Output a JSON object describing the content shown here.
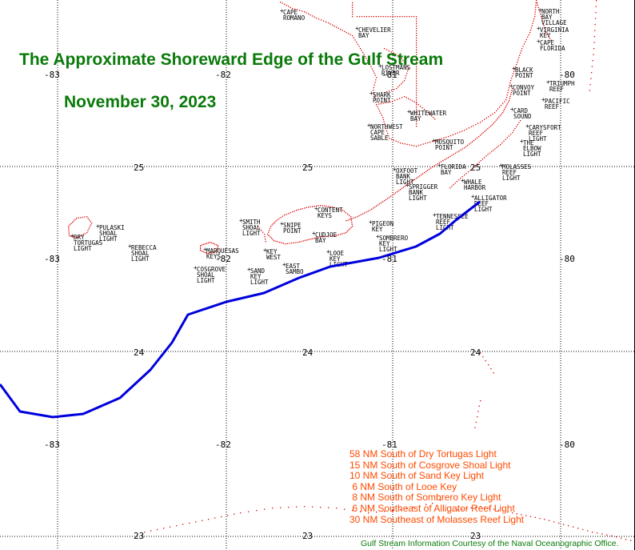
{
  "title": "The Approximate Shoreward Edge of the Gulf Stream",
  "date": "November 30, 2023",
  "colors": {
    "title": "#0a7a0a",
    "stream": "#0000dd",
    "coast": "#dd0000",
    "stats": "#ff4a00",
    "grid": "#000000"
  },
  "map": {
    "longitudes": [
      -83,
      -82,
      -81,
      -80
    ],
    "latitudes": [
      25,
      24,
      23
    ],
    "lon_labels": [
      "-83",
      "-82",
      "-81",
      "-80"
    ],
    "lat_labels": [
      "25",
      "24",
      "23"
    ],
    "places": [
      {
        "name": "CAPE ROMANO",
        "lines": [
          "CAPE",
          "ROMANO"
        ]
      },
      {
        "name": "CHEVELIER BAY",
        "lines": [
          "CHEVELIER",
          "BAY"
        ]
      },
      {
        "name": "LOSTMANS RIVER",
        "lines": [
          "LOSTMANS",
          "RIVER"
        ]
      },
      {
        "name": "SHARK POINT",
        "lines": [
          "SHARK",
          "POINT"
        ]
      },
      {
        "name": "WHITEWATER BAY",
        "lines": [
          "WHITEWATER",
          "BAY"
        ]
      },
      {
        "name": "NORTHWEST CAPE SABLE",
        "lines": [
          "NORTHWEST",
          "CAPE",
          "SABLE"
        ]
      },
      {
        "name": "MOSQUITO POINT",
        "lines": [
          "MOSQUITO",
          "POINT"
        ]
      },
      {
        "name": "FLORIDA BAY",
        "lines": [
          "FLORIDA",
          "BAY"
        ]
      },
      {
        "name": "OXFOOT BANK LIGHT",
        "lines": [
          "OXFOOT",
          "BANK",
          "LIGHT"
        ]
      },
      {
        "name": "SPRIGGER BANK LIGHT",
        "lines": [
          "SPRIGGER",
          "BANK",
          "LIGHT"
        ]
      },
      {
        "name": "WHALE HARBOR",
        "lines": [
          "WHALE",
          "HARBOR"
        ]
      },
      {
        "name": "ALLIGATOR REEF LIGHT",
        "lines": [
          "ALLIGATOR",
          "REEF",
          "LIGHT"
        ]
      },
      {
        "name": "TENNESSEE REEF LIGHT",
        "lines": [
          "TENNESSEE",
          "REEF",
          "LIGHT"
        ]
      },
      {
        "name": "NORTH BAY VILLAGE",
        "lines": [
          "NORTH",
          "BAY",
          "VILLAGE"
        ]
      },
      {
        "name": "VIRGINIA KEY",
        "lines": [
          "VIRGINIA",
          "KEY"
        ]
      },
      {
        "name": "CAPE FLORIDA",
        "lines": [
          "CAPE",
          "FLORIDA"
        ]
      },
      {
        "name": "BLACK POINT",
        "lines": [
          "BLACK",
          "POINT"
        ]
      },
      {
        "name": "TRIUMPH REEF",
        "lines": [
          "TRIUMPH",
          "REEF"
        ]
      },
      {
        "name": "CONVOY POINT",
        "lines": [
          "CONVOY",
          "POINT"
        ]
      },
      {
        "name": "PACIFIC REEF",
        "lines": [
          "PACIFIC",
          "REEF"
        ]
      },
      {
        "name": "CARD SOUND",
        "lines": [
          "CARD",
          "SOUND"
        ]
      },
      {
        "name": "CARYSFORT REEF LIGHT",
        "lines": [
          "CARYSFORT",
          "REEF",
          "LIGHT"
        ]
      },
      {
        "name": "THE ELBOW LIGHT",
        "lines": [
          "THE",
          "ELBOW",
          "LIGHT"
        ]
      },
      {
        "name": "MOLASSES REEF LIGHT",
        "lines": [
          "MOLASSES",
          "REEF",
          "LIGHT"
        ]
      },
      {
        "name": "CONTENT KEYS",
        "lines": [
          "CONTENT",
          "KEYS"
        ]
      },
      {
        "name": "SMITH SHOAL LIGHT",
        "lines": [
          "SMITH",
          "SHOAL",
          "LIGHT"
        ]
      },
      {
        "name": "SNIPE POINT",
        "lines": [
          "SNIPE",
          "POINT"
        ]
      },
      {
        "name": "CUDJOE BAY",
        "lines": [
          "CUDJOE",
          "BAY"
        ]
      },
      {
        "name": "PIGEON KEY",
        "lines": [
          "PIGEON",
          "KEY"
        ]
      },
      {
        "name": "SOMBRERO KEY LIGHT",
        "lines": [
          "SOMBRERO",
          "KEY",
          "LIGHT"
        ]
      },
      {
        "name": "PULASKI SHOAL LIGHT",
        "lines": [
          "PULASKI",
          "SHOAL",
          "LIGHT"
        ]
      },
      {
        "name": "DRY TORTUGAS LIGHT",
        "lines": [
          "DRY",
          "TORTUGAS",
          "LIGHT"
        ]
      },
      {
        "name": "REBECCA SHOAL LIGHT",
        "lines": [
          "REBECCA",
          "SHOAL",
          "LIGHT"
        ]
      },
      {
        "name": "MARQUESAS KEYS",
        "lines": [
          "MARQUESAS",
          "KEYS"
        ]
      },
      {
        "name": "COSGROVE SHOAL LIGHT",
        "lines": [
          "COSGROVE",
          "SHOAL",
          "LIGHT"
        ]
      },
      {
        "name": "KEY WEST",
        "lines": [
          "KEY",
          "WEST"
        ]
      },
      {
        "name": "SAND KEY LIGHT",
        "lines": [
          "SAND",
          "KEY",
          "LIGHT"
        ]
      },
      {
        "name": "EAST SAMBO",
        "lines": [
          "EAST",
          "SAMBO"
        ]
      },
      {
        "name": "LOOE KEY LIGHT",
        "lines": [
          "LOOE",
          "KEY",
          "LIGHT"
        ]
      }
    ]
  },
  "stream_distances": [
    "58 NM South of Dry Tortugas Light",
    "15 NM South of Cosgrove Shoal Light",
    "10 NM South of Sand Key Light",
    " 6 NM South of Looe Key",
    " 8 NM South of Sombrero Key Light",
    " 6 NM Southeast of Alligator Reef Light",
    "30 NM Southeast of Molasses Reef Light"
  ],
  "credit": "Gulf Stream Information Courtesy of the Naval Oceanographic Office."
}
